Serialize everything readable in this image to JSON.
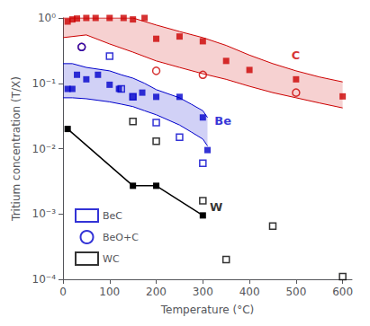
{
  "chart_data": {
    "type": "scatter",
    "xlabel": "Temperature (°C)",
    "ylabel": "Tritium concentration (T/X)",
    "xlim": [
      0,
      620
    ],
    "ylim": [
      0.0001,
      1
    ],
    "xticks": [
      0,
      100,
      200,
      300,
      400,
      500,
      600
    ],
    "yticks": [
      {
        "value": 0.0001,
        "label": "10⁻⁴"
      },
      {
        "value": 0.001,
        "label": "10⁻³"
      },
      {
        "value": 0.01,
        "label": "10⁻²"
      },
      {
        "value": 0.1,
        "label": "10⁻¹"
      },
      {
        "value": 1,
        "label": "10⁰"
      }
    ],
    "log": "y",
    "grid": false,
    "legend": "lower left",
    "series": [
      {
        "type": "band",
        "color": "#cc0000",
        "upper": [
          [
            0,
            1.0
          ],
          [
            50,
            1.0
          ],
          [
            100,
            1.0
          ],
          [
            150,
            1.0
          ],
          [
            200,
            0.78
          ],
          [
            250,
            0.62
          ],
          [
            300,
            0.5
          ],
          [
            350,
            0.38
          ],
          [
            400,
            0.27
          ],
          [
            450,
            0.2
          ],
          [
            500,
            0.155
          ],
          [
            550,
            0.125
          ],
          [
            600,
            0.105
          ]
        ],
        "lower": [
          [
            0,
            0.5
          ],
          [
            50,
            0.55
          ],
          [
            100,
            0.4
          ],
          [
            150,
            0.3
          ],
          [
            200,
            0.22
          ],
          [
            250,
            0.175
          ],
          [
            300,
            0.14
          ],
          [
            350,
            0.115
          ],
          [
            400,
            0.09
          ],
          [
            450,
            0.072
          ],
          [
            500,
            0.06
          ],
          [
            550,
            0.05
          ],
          [
            600,
            0.042
          ]
        ]
      },
      {
        "type": "band",
        "color": "#0000cc",
        "upper": [
          [
            0,
            0.2
          ],
          [
            20,
            0.2
          ],
          [
            50,
            0.175
          ],
          [
            100,
            0.155
          ],
          [
            125,
            0.135
          ],
          [
            150,
            0.12
          ],
          [
            175,
            0.1
          ],
          [
            200,
            0.08
          ],
          [
            250,
            0.06
          ],
          [
            275,
            0.048
          ],
          [
            300,
            0.038
          ],
          [
            310,
            0.03
          ]
        ],
        "lower": [
          [
            0,
            0.06
          ],
          [
            20,
            0.06
          ],
          [
            50,
            0.058
          ],
          [
            100,
            0.052
          ],
          [
            125,
            0.048
          ],
          [
            150,
            0.044
          ],
          [
            175,
            0.038
          ],
          [
            200,
            0.033
          ],
          [
            250,
            0.023
          ],
          [
            275,
            0.018
          ],
          [
            300,
            0.014
          ],
          [
            310,
            0.011
          ]
        ]
      },
      {
        "type": "scatter",
        "color": "#cc0000",
        "marker": "square",
        "values": [
          [
            10,
            0.88
          ],
          [
            20,
            0.95
          ],
          [
            30,
            0.98
          ],
          [
            50,
            1.0
          ],
          [
            70,
            1.0
          ],
          [
            100,
            1.0
          ],
          [
            130,
            1.0
          ],
          [
            150,
            0.95
          ],
          [
            175,
            1.0
          ],
          [
            200,
            0.48
          ],
          [
            250,
            0.52
          ],
          [
            300,
            0.44
          ],
          [
            350,
            0.22
          ],
          [
            400,
            0.16
          ],
          [
            500,
            0.115
          ],
          [
            600,
            0.063
          ]
        ]
      },
      {
        "type": "scatter",
        "color": "#cc0000",
        "marker": "circle_open",
        "values": [
          [
            40,
            0.36
          ],
          [
            200,
            0.155
          ],
          [
            300,
            0.135
          ],
          [
            500,
            0.072
          ]
        ]
      },
      {
        "type": "scatter",
        "color": "#0000cc",
        "marker": "square",
        "values": [
          [
            10,
            0.082
          ],
          [
            20,
            0.082
          ],
          [
            30,
            0.135
          ],
          [
            50,
            0.115
          ],
          [
            75,
            0.135
          ],
          [
            100,
            0.095
          ],
          [
            120,
            0.082
          ],
          [
            150,
            0.062
          ],
          [
            170,
            0.072
          ],
          [
            200,
            0.062
          ],
          [
            250,
            0.062
          ],
          [
            300,
            0.03
          ],
          [
            310,
            0.0095
          ]
        ]
      },
      {
        "type": "scatter",
        "name": "BeC",
        "color": "#0000cc",
        "marker": "square_open",
        "values": [
          [
            100,
            0.26
          ],
          [
            125,
            0.082
          ],
          [
            150,
            0.062
          ],
          [
            200,
            0.025
          ],
          [
            250,
            0.015
          ],
          [
            300,
            0.006
          ]
        ]
      },
      {
        "type": "scatter",
        "name": "BeO+C",
        "color": "#0000cc",
        "marker": "circle_open",
        "values": [
          [
            40,
            0.36
          ]
        ]
      },
      {
        "type": "line",
        "color": "#000000",
        "marker": "square",
        "values": [
          [
            10,
            0.02
          ],
          [
            150,
            0.0027
          ],
          [
            200,
            0.0027
          ],
          [
            300,
            0.00095
          ]
        ]
      },
      {
        "type": "scatter",
        "name": "WC",
        "color": "#000000",
        "marker": "square_open",
        "values": [
          [
            150,
            0.026
          ],
          [
            200,
            0.013
          ],
          [
            300,
            0.0016
          ],
          [
            350,
            0.0002
          ],
          [
            450,
            0.00065
          ],
          [
            600,
            0.00011
          ]
        ]
      }
    ],
    "annotations": [
      {
        "text": "C",
        "x": 490,
        "y": 0.22,
        "color": "#cc0000"
      },
      {
        "text": "Be",
        "x": 325,
        "y": 0.022,
        "color": "#0000cc"
      },
      {
        "text": "W",
        "x": 315,
        "y": 0.00105,
        "color": "#000000"
      }
    ]
  }
}
